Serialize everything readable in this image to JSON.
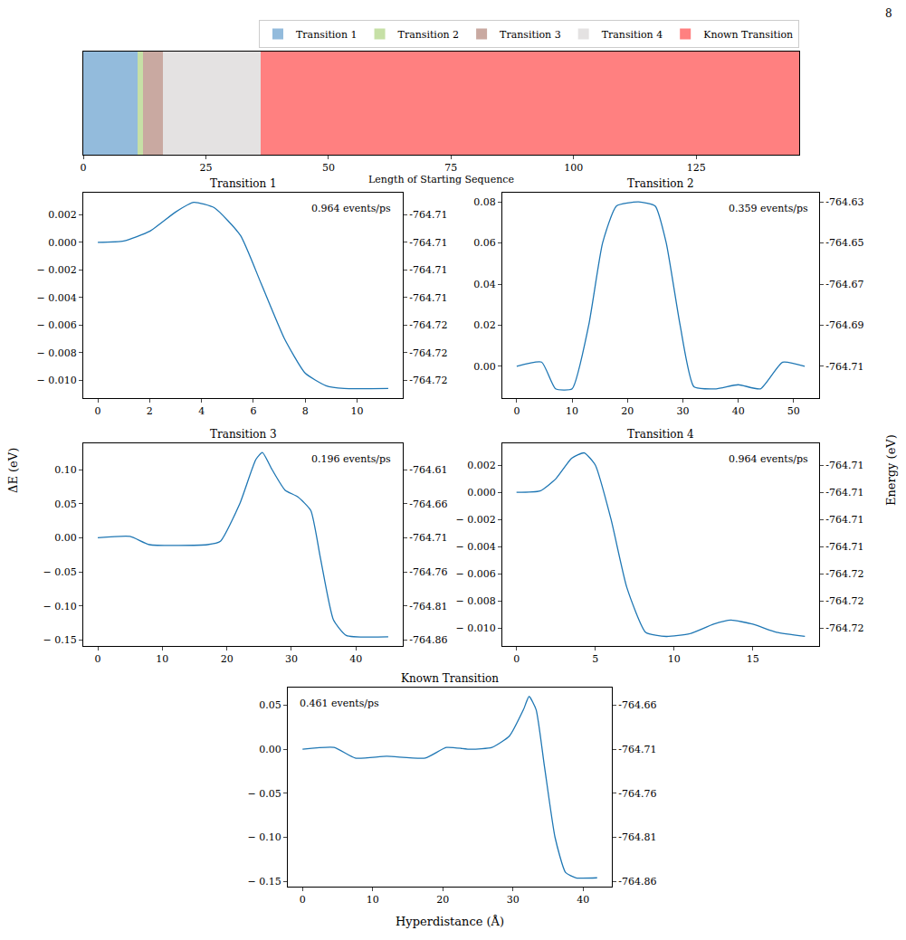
{
  "page_number": "8",
  "figure_labels": {
    "ylabel": "ΔE (eV)",
    "y2label": "Energy (eV)",
    "xlabel": "Hyperdistance (Å)"
  },
  "chart_data": [
    {
      "type": "bar",
      "orientation": "horizontal",
      "stacked": true,
      "legend": "top",
      "tick_labels": "x",
      "xlabel": "Length of Starting Sequence",
      "xlim": [
        0,
        146
      ],
      "xticks": [
        0,
        25,
        50,
        75,
        100,
        125
      ],
      "series": [
        {
          "name": "Transition 1",
          "color": "#93bbdc",
          "values": [
            11
          ]
        },
        {
          "name": "Transition 2",
          "color": "#c6e0a6",
          "values": [
            1.2
          ]
        },
        {
          "name": "Transition 3",
          "color": "#c9a9a1",
          "values": [
            4
          ]
        },
        {
          "name": "Transition 4",
          "color": "#e4e2e2",
          "values": [
            20
          ]
        },
        {
          "name": "Known Transition",
          "color": "#ff8080",
          "values": [
            109.8
          ]
        }
      ]
    },
    {
      "type": "line",
      "title": "Transition 1",
      "annotations": [
        "0.964 events/ps"
      ],
      "x": [
        0,
        1,
        2,
        3,
        3.7,
        4.5,
        5.5,
        6.3,
        7.2,
        8,
        8.8,
        9.5,
        11.2
      ],
      "series": [
        {
          "color": "#1f77b4",
          "values": [
            0,
            0.0001,
            0.0008,
            0.0022,
            0.0029,
            0.0025,
            0.0005,
            -0.003,
            -0.007,
            -0.0095,
            -0.0104,
            -0.0106,
            -0.0106
          ]
        }
      ],
      "xlim": [
        -0.56,
        11.76
      ],
      "xticks": [
        0,
        2,
        4,
        6,
        8,
        10
      ],
      "ylim": [
        -0.0113,
        0.0036
      ],
      "yticks": [
        0.002,
        {
          "value": 0,
          "label": "0.000"
        },
        {
          "value": -0.002,
          "label": "− 0.002"
        },
        {
          "value": -0.004,
          "label": "− 0.004"
        },
        {
          "value": -0.006,
          "label": "− 0.006"
        },
        {
          "value": -0.008,
          "label": "− 0.008"
        },
        {
          "value": -0.01,
          "label": "− 0.010"
        }
      ],
      "y2lim": [
        -764.7213,
        -764.7064
      ],
      "y2ticks": [
        {
          "value": -764.708,
          "label": "-764.71"
        },
        {
          "value": -764.71,
          "label": "-764.71"
        },
        {
          "value": -764.712,
          "label": "-764.71"
        },
        {
          "value": -764.714,
          "label": "-764.71"
        },
        {
          "value": -764.716,
          "label": "-764.72"
        },
        {
          "value": -764.718,
          "label": "-764.72"
        },
        {
          "value": -764.72,
          "label": "-764.72"
        }
      ]
    },
    {
      "type": "line",
      "title": "Transition 2",
      "annotations": [
        "0.359 events/ps"
      ],
      "x": [
        0,
        4.5,
        7,
        10,
        13,
        15.5,
        18,
        22,
        25,
        27,
        29.5,
        32,
        36,
        40,
        44,
        48,
        52
      ],
      "series": [
        {
          "color": "#1f77b4",
          "values": [
            0,
            0.002,
            -0.011,
            -0.011,
            0.02,
            0.06,
            0.078,
            0.08,
            0.078,
            0.06,
            0.02,
            -0.01,
            -0.011,
            -0.009,
            -0.011,
            0.002,
            0
          ]
        }
      ],
      "xlim": [
        -2.6,
        54.6
      ],
      "xticks": [
        0,
        10,
        20,
        30,
        40,
        50
      ],
      "ylim": [
        -0.0155,
        0.0845
      ],
      "yticks": [
        {
          "value": 0,
          "label": "0.00"
        },
        0.02,
        0.04,
        0.06,
        0.08
      ],
      "y2lim": [
        -764.7255,
        -764.6255
      ],
      "y2ticks": [
        -764.71,
        -764.69,
        -764.67,
        -764.65,
        -764.63
      ]
    },
    {
      "type": "line",
      "title": "Transition 3",
      "annotations": [
        "0.196 events/ps"
      ],
      "x": [
        0,
        5,
        8,
        17,
        19,
        22,
        24.5,
        25.5,
        27,
        29,
        31,
        33,
        34.5,
        36.5,
        38.5,
        45
      ],
      "series": [
        {
          "color": "#1f77b4",
          "values": [
            0,
            0.002,
            -0.01,
            -0.01,
            -0.005,
            0.05,
            0.115,
            0.125,
            0.1,
            0.07,
            0.06,
            0.04,
            -0.03,
            -0.12,
            -0.143,
            -0.145
          ]
        }
      ],
      "xlim": [
        -2.25,
        47.25
      ],
      "xticks": [
        0,
        10,
        20,
        30,
        40
      ],
      "ylim": [
        -0.1585,
        0.1385
      ],
      "yticks": [
        {
          "value": 0.1,
          "label": "0.10"
        },
        0.05,
        {
          "value": 0,
          "label": "0.00"
        },
        {
          "value": -0.05,
          "label": "− 0.05"
        },
        {
          "value": -0.1,
          "label": "− 0.10"
        },
        {
          "value": -0.15,
          "label": "− 0.15"
        }
      ],
      "y2lim": [
        -764.8685,
        -764.5715
      ],
      "y2ticks": [
        -764.61,
        -764.66,
        -764.71,
        -764.76,
        -764.81,
        -764.86
      ]
    },
    {
      "type": "line",
      "title": "Transition 4",
      "annotations": [
        "0.964 events/ps"
      ],
      "x": [
        0,
        1.5,
        2.5,
        3.5,
        4.3,
        5,
        6,
        7,
        8.2,
        9.5,
        11,
        12.5,
        13.6,
        15,
        16.5,
        18.3
      ],
      "series": [
        {
          "color": "#1f77b4",
          "values": [
            0,
            0.0001,
            0.001,
            0.0025,
            0.0029,
            0.002,
            -0.002,
            -0.007,
            -0.0103,
            -0.0106,
            -0.0104,
            -0.0097,
            -0.0094,
            -0.0097,
            -0.0103,
            -0.0106
          ]
        }
      ],
      "xlim": [
        -0.9,
        19.2
      ],
      "xticks": [
        0,
        5,
        10,
        15
      ],
      "ylim": [
        -0.0113,
        0.0036
      ],
      "yticks": [
        0.002,
        {
          "value": 0,
          "label": "0.000"
        },
        {
          "value": -0.002,
          "label": "− 0.002"
        },
        {
          "value": -0.004,
          "label": "− 0.004"
        },
        {
          "value": -0.006,
          "label": "− 0.006"
        },
        {
          "value": -0.008,
          "label": "− 0.008"
        },
        {
          "value": -0.01,
          "label": "− 0.010"
        }
      ],
      "y2lim": [
        -764.7213,
        -764.7064
      ],
      "y2ticks": [
        {
          "value": -764.708,
          "label": "-764.71"
        },
        {
          "value": -764.71,
          "label": "-764.71"
        },
        {
          "value": -764.712,
          "label": "-764.71"
        },
        {
          "value": -764.714,
          "label": "-764.71"
        },
        {
          "value": -764.716,
          "label": "-764.72"
        },
        {
          "value": -764.718,
          "label": "-764.72"
        },
        {
          "value": -764.72,
          "label": "-764.72"
        }
      ]
    },
    {
      "type": "line",
      "title": "Known Transition",
      "annotations": [
        "0.461 events/ps"
      ],
      "x": [
        0,
        4.5,
        7.5,
        12,
        17.5,
        20.5,
        24,
        27,
        29.5,
        31.5,
        32.3,
        33.3,
        34.5,
        36,
        37.5,
        39,
        42
      ],
      "series": [
        {
          "color": "#1f77b4",
          "values": [
            0,
            0.002,
            -0.01,
            -0.008,
            -0.01,
            0.002,
            0,
            0.002,
            0.015,
            0.045,
            0.06,
            0.045,
            -0.02,
            -0.1,
            -0.14,
            -0.146,
            -0.146
          ]
        }
      ],
      "xlim": [
        -2.1,
        44.1
      ],
      "xticks": [
        0,
        10,
        20,
        30,
        40
      ],
      "ylim": [
        -0.156,
        0.07
      ],
      "yticks": [
        0.05,
        {
          "value": 0,
          "label": "0.00"
        },
        {
          "value": -0.05,
          "label": "− 0.05"
        },
        {
          "value": -0.1,
          "label": "− 0.10"
        },
        {
          "value": -0.15,
          "label": "− 0.15"
        }
      ],
      "y2lim": [
        -764.866,
        -764.64
      ],
      "y2ticks": [
        -764.66,
        -764.71,
        -764.76,
        -764.81,
        -764.86
      ]
    }
  ]
}
